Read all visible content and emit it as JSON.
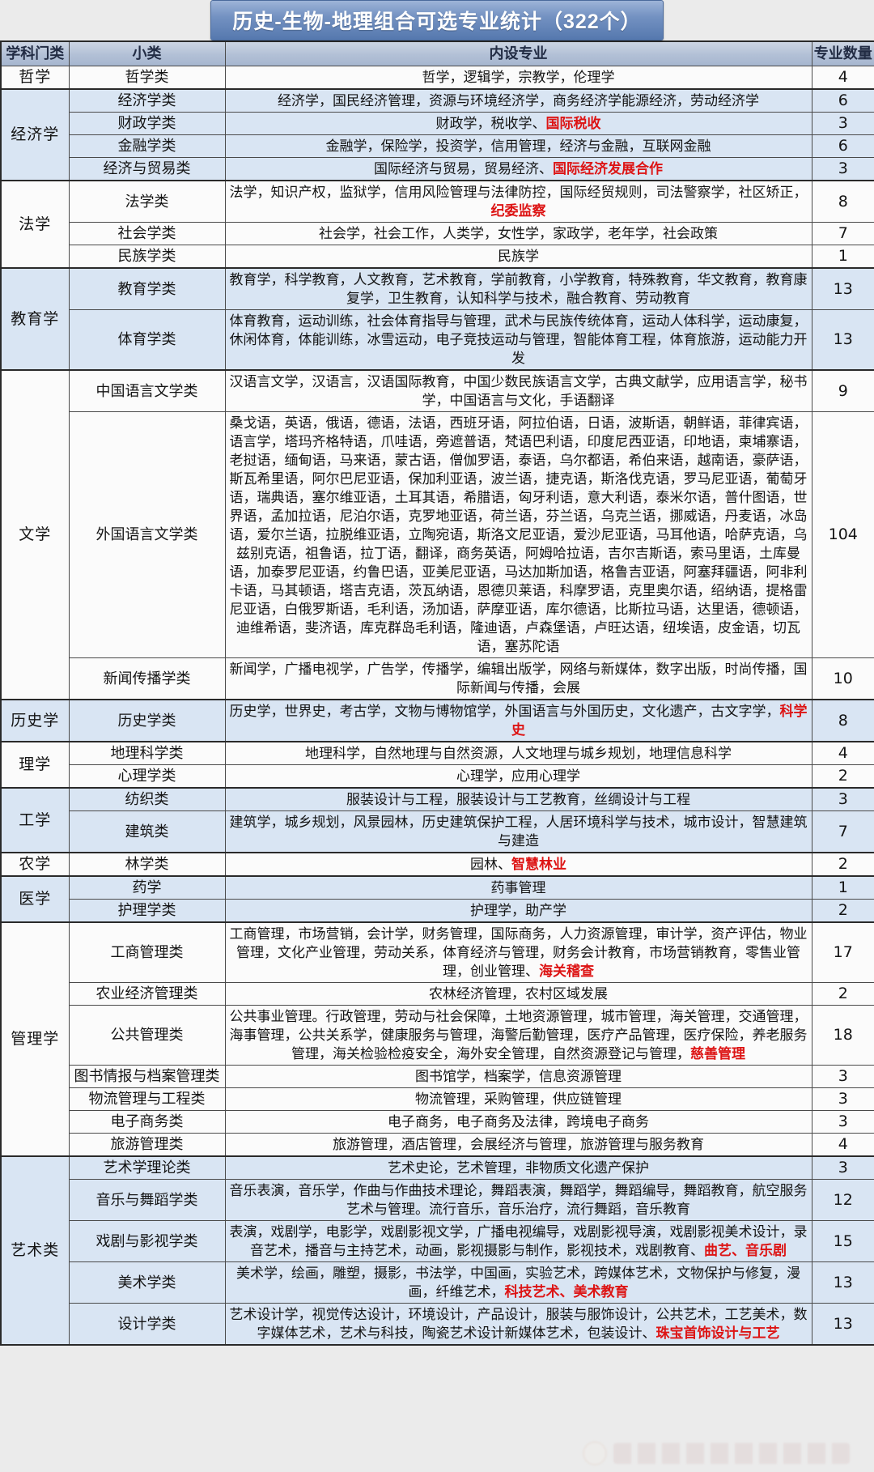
{
  "title": "历史-生物-地理组合可选专业统计（322个）",
  "columns": [
    "学科门类",
    "小类",
    "内设专业",
    "专业数量"
  ],
  "accent_colors": {
    "title_bar_blue": "#5578ae",
    "header_blue_gray": "#b2c0d6",
    "section_shade_blue": "#d9e5f3",
    "highlight_red": "#dd1414"
  },
  "sections": [
    {
      "category": "哲学",
      "shaded": false,
      "rows": [
        {
          "subclass": "哲学类",
          "count": "4",
          "segments": [
            {
              "text": "哲学，逻辑学，宗教学，伦理学",
              "red": false
            }
          ]
        }
      ]
    },
    {
      "category": "经济学",
      "shaded": true,
      "rows": [
        {
          "subclass": "经济学类",
          "count": "6",
          "segments": [
            {
              "text": "经济学，国民经济管理，资源与环境经济学，商务经济学能源经济，劳动经济学",
              "red": false
            }
          ]
        },
        {
          "subclass": "财政学类",
          "count": "3",
          "segments": [
            {
              "text": "财政学，税收学、",
              "red": false
            },
            {
              "text": "国际税收",
              "red": true
            }
          ]
        },
        {
          "subclass": "金融学类",
          "count": "6",
          "segments": [
            {
              "text": "金融学，保险学，投资学，信用管理，经济与金融，互联网金融",
              "red": false
            }
          ]
        },
        {
          "subclass": "经济与贸易类",
          "count": "3",
          "segments": [
            {
              "text": "国际经济与贸易，贸易经济、",
              "red": false
            },
            {
              "text": "国际经济发展合作",
              "red": true
            }
          ]
        }
      ]
    },
    {
      "category": "法学",
      "shaded": false,
      "rows": [
        {
          "subclass": "法学类",
          "count": "8",
          "segments": [
            {
              "text": "法学，知识产权，监狱学，信用风险管理与法律防控，国际经贸规则，司法警察学，社区矫正，",
              "red": false
            },
            {
              "text": "纪委监察",
              "red": true
            }
          ]
        },
        {
          "subclass": "社会学类",
          "count": "7",
          "segments": [
            {
              "text": "社会学，社会工作，人类学，女性学，家政学，老年学，社会政策",
              "red": false
            }
          ]
        },
        {
          "subclass": "民族学类",
          "count": "1",
          "segments": [
            {
              "text": "民族学",
              "red": false
            }
          ]
        }
      ]
    },
    {
      "category": "教育学",
      "shaded": true,
      "rows": [
        {
          "subclass": "教育学类",
          "count": "13",
          "segments": [
            {
              "text": "教育学，科学教育，人文教育，艺术教育，学前教育，小学教育，特殊教育，华文教育，教育康复学，卫生教育，认知科学与技术，融合教育、劳动教育",
              "red": false
            }
          ]
        },
        {
          "subclass": "体育学类",
          "count": "13",
          "segments": [
            {
              "text": "体育教育，运动训练，社会体育指导与管理，武术与民族传统体育，运动人体科学，运动康复，休闲体育，体能训练，冰雪运动，电子竞技运动与管理，智能体育工程，体育旅游，运动能力开发",
              "red": false
            }
          ]
        }
      ]
    },
    {
      "category": "文学",
      "shaded": false,
      "rows": [
        {
          "subclass": "中国语言文学类",
          "count": "9",
          "segments": [
            {
              "text": "汉语言文学，汉语言，汉语国际教育，中国少数民族语言文学，古典文献学，应用语言学，秘书学，中国语言与文化，手语翻译",
              "red": false
            }
          ]
        },
        {
          "subclass": "外国语言文学类",
          "count": "104",
          "segments": [
            {
              "text": "桑戈语，英语，俄语，德语，法语，西班牙语，阿拉伯语，日语，波斯语，朝鲜语，菲律宾语，语言学，塔玛齐格特语，爪哇语，旁遮普语，梵语巴利语，印度尼西亚语，印地语，柬埔寨语，老挝语，缅甸语，马来语，蒙古语，僧伽罗语，泰语，乌尔都语，希伯来语，越南语，豪萨语，斯瓦希里语，阿尔巴尼亚语，保加利亚语，波兰语，捷克语，斯洛伐克语，罗马尼亚语，葡萄牙语，瑞典语，塞尔维亚语，土耳其语，希腊语，匈牙利语，意大利语，泰米尔语，普什图语，世界语，孟加拉语，尼泊尔语，克罗地亚语，荷兰语，芬兰语，乌克兰语，挪威语，丹麦语，冰岛语，爱尔兰语，拉脱维亚语，立陶宛语，斯洛文尼亚语，爱沙尼亚语，马耳他语，哈萨克语，乌兹别克语，祖鲁语，拉丁语，翻译，商务英语，阿姆哈拉语，吉尔吉斯语，索马里语，土库曼语，加泰罗尼亚语，约鲁巴语，亚美尼亚语，马达加斯加语，格鲁吉亚语，阿塞拜疆语，阿非利卡语，马其顿语，塔吉克语，茨瓦纳语，恩德贝莱语，科摩罗语，克里奥尔语，绍纳语，提格雷尼亚语，白俄罗斯语，毛利语，汤加语，萨摩亚语，库尔德语，比斯拉马语，达里语，德顿语，迪维希语，斐济语，库克群岛毛利语，隆迪语，卢森堡语，卢旺达语，纽埃语，皮金语，切瓦语，塞苏陀语",
              "red": false
            }
          ]
        },
        {
          "subclass": "新闻传播学类",
          "count": "10",
          "segments": [
            {
              "text": "新闻学，广播电视学，广告学，传播学，编辑出版学，网络与新媒体，数字出版，时尚传播，国际新闻与传播，会展",
              "red": false
            }
          ]
        }
      ]
    },
    {
      "category": "历史学",
      "shaded": true,
      "rows": [
        {
          "subclass": "历史学类",
          "count": "8",
          "segments": [
            {
              "text": "历史学，世界史，考古学，文物与博物馆学，外国语言与外国历史，文化遗产，古文字学，",
              "red": false
            },
            {
              "text": "科学史",
              "red": true
            }
          ]
        }
      ]
    },
    {
      "category": "理学",
      "shaded": false,
      "rows": [
        {
          "subclass": "地理科学类",
          "count": "4",
          "segments": [
            {
              "text": "地理科学，自然地理与自然资源，人文地理与城乡规划，地理信息科学",
              "red": false
            }
          ]
        },
        {
          "subclass": "心理学类",
          "count": "2",
          "segments": [
            {
              "text": "心理学，应用心理学",
              "red": false
            }
          ]
        }
      ]
    },
    {
      "category": "工学",
      "shaded": true,
      "rows": [
        {
          "subclass": "纺织类",
          "count": "3",
          "segments": [
            {
              "text": "服装设计与工程，服装设计与工艺教育，丝绸设计与工程",
              "red": false
            }
          ]
        },
        {
          "subclass": "建筑类",
          "count": "7",
          "segments": [
            {
              "text": "建筑学，城乡规划，风景园林，历史建筑保护工程，人居环境科学与技术，城市设计，智慧建筑与建造",
              "red": false
            }
          ]
        }
      ]
    },
    {
      "category": "农学",
      "shaded": false,
      "rows": [
        {
          "subclass": "林学类",
          "count": "2",
          "segments": [
            {
              "text": "园林、",
              "red": false
            },
            {
              "text": "智慧林业",
              "red": true
            }
          ]
        }
      ]
    },
    {
      "category": "医学",
      "shaded": true,
      "rows": [
        {
          "subclass": "药学",
          "count": "1",
          "segments": [
            {
              "text": "药事管理",
              "red": false
            }
          ]
        },
        {
          "subclass": "护理学类",
          "count": "2",
          "segments": [
            {
              "text": "护理学，助产学",
              "red": false
            }
          ]
        }
      ]
    },
    {
      "category": "管理学",
      "shaded": false,
      "rows": [
        {
          "subclass": "工商管理类",
          "count": "17",
          "segments": [
            {
              "text": "工商管理，市场营销，会计学，财务管理，国际商务，人力资源管理，审计学，资产评估，物业管理，文化产业管理，劳动关系，体育经济与管理，财务会计教育，市场营销教育，零售业管理，创业管理、",
              "red": false
            },
            {
              "text": "海关稽查",
              "red": true
            }
          ]
        },
        {
          "subclass": "农业经济管理类",
          "count": "2",
          "segments": [
            {
              "text": "农林经济管理，农村区域发展",
              "red": false
            }
          ]
        },
        {
          "subclass": "公共管理类",
          "count": "18",
          "segments": [
            {
              "text": "公共事业管理。行政管理，劳动与社会保障，土地资源管理，城市管理，海关管理，交通管理，海事管理，公共关系学，健康服务与管理，海警后勤管理，医疗产品管理，医疗保险，养老服务管理，海关检验检疫安全，海外安全管理，自然资源登记与管理，",
              "red": false
            },
            {
              "text": "慈善管理",
              "red": true
            }
          ]
        },
        {
          "subclass": "图书情报与档案管理类",
          "count": "3",
          "segments": [
            {
              "text": "图书馆学，档案学，信息资源管理",
              "red": false
            }
          ]
        },
        {
          "subclass": "物流管理与工程类",
          "count": "3",
          "segments": [
            {
              "text": "物流管理，采购管理，供应链管理",
              "red": false
            }
          ]
        },
        {
          "subclass": "电子商务类",
          "count": "3",
          "segments": [
            {
              "text": "电子商务，电子商务及法律，跨境电子商务",
              "red": false
            }
          ]
        },
        {
          "subclass": "旅游管理类",
          "count": "4",
          "segments": [
            {
              "text": "旅游管理，酒店管理，会展经济与管理，旅游管理与服务教育",
              "red": false
            }
          ]
        }
      ]
    },
    {
      "category": "艺术类",
      "shaded": true,
      "rows": [
        {
          "subclass": "艺术学理论类",
          "count": "3",
          "segments": [
            {
              "text": "艺术史论，艺术管理，非物质文化遗产保护",
              "red": false
            }
          ]
        },
        {
          "subclass": "音乐与舞蹈学类",
          "count": "12",
          "segments": [
            {
              "text": "音乐表演，音乐学，作曲与作曲技术理论，舞蹈表演，舞蹈学，舞蹈编导，舞蹈教育，航空服务艺术与管理。流行音乐，音乐治疗，流行舞蹈，音乐教育",
              "red": false
            }
          ]
        },
        {
          "subclass": "戏剧与影视学类",
          "count": "15",
          "segments": [
            {
              "text": "表演，戏剧学，电影学，戏剧影视文学，广播电视编导，戏剧影视导演，戏剧影视美术设计，录音艺术，播音与主持艺术，动画，影视摄影与制作，影视技术，戏剧教育、",
              "red": false
            },
            {
              "text": "曲艺、音乐剧",
              "red": true
            }
          ]
        },
        {
          "subclass": "美术学类",
          "count": "13",
          "segments": [
            {
              "text": "美术学，绘画，雕塑，摄影，书法学，中国画，实验艺术，跨媒体艺术，文物保护与修复，漫画，纤维艺术，",
              "red": false
            },
            {
              "text": "科技艺术、美术教育",
              "red": true
            }
          ]
        },
        {
          "subclass": "设计学类",
          "count": "13",
          "segments": [
            {
              "text": "艺术设计学，视觉传达设计，环境设计，产品设计，服装与服饰设计，公共艺术，工艺美术，数字媒体艺术，艺术与科技，陶瓷艺术设计新媒体艺术，包装设计、",
              "red": false
            },
            {
              "text": "珠宝首饰设计与工艺",
              "red": true
            }
          ]
        }
      ]
    }
  ]
}
